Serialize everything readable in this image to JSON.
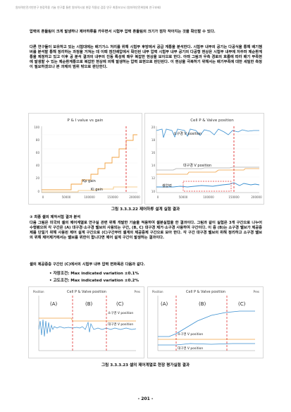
{
  "header": {
    "running_text": "원자력안전기반연구 현장적용 기술 연구를 통한 원자력시설 현장 적용성 검증 연구 최종보고서 (원자력안전위원회 연구과제)"
  },
  "paragraphs": [
    "압력의 흔들림이 크게 발생하나 제어하류를 카우면서 시험부 압력 흔들림의 크기가 점차 작아지는 것을 확인할 수 있다.",
    "다른 연구들이 보유하고 있는 시험대에는 배기가스 처리를 위해 시험부 후방에서 공급 계통을 분석한다. 시험부 내부의 공기는 다공식을 통해 배기챔버를 분석할 통해 정리하는 과정을 거쳐는 데 이때 점진배압에서 확인된 내부 압력 시험부 내부 공기의 다공형 현상은 시험부 내부에 저주파 제순환계통을 제정하고 있고 이후 공 분석 결과의 내부의 진동 특성에 매우 복잡한 현상을 보이므로 한다. 아래 그림과 우측 경로의 흐름에 따라 배기 부족현에 발생할 수 있는 제순환계통으로 복잡한 현상에 의해 발생하는 압력 표현으로 판단된다. 이 현상을 극복하기 위해서는 배기부족에 대한 세밀한 측정이 필요하겠으나 본 과제의 범위 밖으로 판단한다."
  ],
  "fig1": {
    "caption": "그림 3.3.3.22 제어하류 설계 실험 결과",
    "left_chart": {
      "title": "P & I value vs gain",
      "labels": {
        "kp": "Kp gain",
        "ki": "Ki gain"
      },
      "y_ticks": [
        "100",
        "80",
        "60",
        "40",
        "20",
        "0"
      ],
      "x_ticks": [
        "0",
        "50000",
        "100000",
        "150000",
        "200000"
      ]
    },
    "right_chart": {
      "title": "Cell P & Valve position",
      "labels": {
        "valve": "소구경 V position",
        "mid": "대구경 V position",
        "pressure": "셀압력"
      },
      "y_ticks": [
        "20",
        "18",
        "16",
        "14",
        "12",
        "10"
      ],
      "x_ticks": [
        "0",
        "50000",
        "100000",
        "150000",
        "200000"
      ]
    }
  },
  "section": {
    "heading": "③ 최종 셀의 제작서험 결과 분석",
    "body": "다음 그림은 미국의 셀의 제어계열로 연구실 관련 위해 개발한 기술을 적용하여 셀분실험을 한 결과이다. 그림과 같이 실험은 3개 구간으로 나누어 수행됐으며 각 구간은 (A) 대구경·소구경 밸브의 사용되는 구간, (B, C) 대구경 제거·소구경 사용하여 구간이다. 이 중 (B)는 소구경 밸브가 제공중제를 단일기 위해 사용된 제어 설계 구간으로 (C)구간부터 셀계의 제공중제 구간으로 보아 한다. 각 구간 대구경 밸브의 위해 정리하고 소구경 밸브의 위해 제어제거에서는 밸브를 위한이 합니다면 제어 설계 구간이 발생하는 결과이다.",
    "summary": "셀의 제공중층 구간인 (C)에서의 시험부 내부 압력 변화폭은 다음과 같다."
  },
  "bullets": [
    "• 자장조건: Max indicated variation ±0.1%",
    "• 고도조건: Max indicated variation ±0.2%"
  ],
  "fig2": {
    "caption": "그림 3.3.3.23 셀의 제어계열로 현장 평가실험 결과",
    "left_chart": {
      "title": "Cell P & Valve position",
      "axis_left": "Position",
      "axis_right": "Pres",
      "regions": [
        "(A)",
        "(B)",
        "(C)"
      ],
      "labels": {
        "valve": "소구경 V position",
        "mid": "대구경 V position"
      }
    },
    "right_chart": {
      "title": "Cell P & Valve position",
      "axis_left": "Position",
      "axis_right": "Pres",
      "regions": [
        "(A)",
        "(B)",
        "(C)"
      ],
      "labels": {
        "valve": "소구경 V position",
        "mid": "대구경 V position"
      }
    }
  },
  "page_number": "- 201 -",
  "colors": {
    "orange": "#f0a040",
    "blue": "#3a8fd0",
    "red": "#e03030",
    "grey": "#aaaaaa"
  }
}
